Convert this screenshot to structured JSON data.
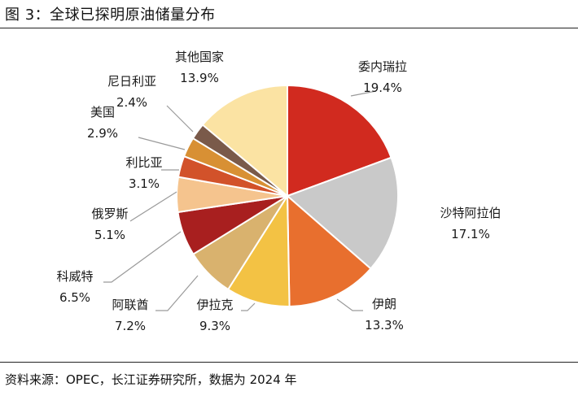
{
  "title": "图 3：全球已探明原油储量分布",
  "source": "资料来源：OPEC，长江证券研究所，数据为 2024 年",
  "chart_data": {
    "type": "pie",
    "title": "全球已探明原油储量分布",
    "unit": "%",
    "series": [
      {
        "name": "委内瑞拉",
        "value": 19.4,
        "label": "19.4%",
        "color": "#d12a1f"
      },
      {
        "name": "沙特阿拉伯",
        "value": 17.1,
        "label": "17.1%",
        "color": "#c9c9c9"
      },
      {
        "name": "伊朗",
        "value": 13.3,
        "label": "13.3%",
        "color": "#e86f2e"
      },
      {
        "name": "伊拉克",
        "value": 9.3,
        "label": "9.3%",
        "color": "#f3c244"
      },
      {
        "name": "阿联酋",
        "value": 7.2,
        "label": "7.2%",
        "color": "#d9b26e"
      },
      {
        "name": "科威特",
        "value": 6.5,
        "label": "6.5%",
        "color": "#a81f1f"
      },
      {
        "name": "俄罗斯",
        "value": 5.1,
        "label": "5.1%",
        "color": "#f5c48e"
      },
      {
        "name": "利比亚",
        "value": 3.1,
        "label": "3.1%",
        "color": "#d2522a"
      },
      {
        "name": "美国",
        "value": 2.9,
        "label": "2.9%",
        "color": "#d89034"
      },
      {
        "name": "尼日利亚",
        "value": 2.4,
        "label": "2.4%",
        "color": "#7a5a4a"
      },
      {
        "name": "其他国家",
        "value": 13.9,
        "label": "13.9%",
        "color": "#fbe3a3"
      }
    ]
  }
}
